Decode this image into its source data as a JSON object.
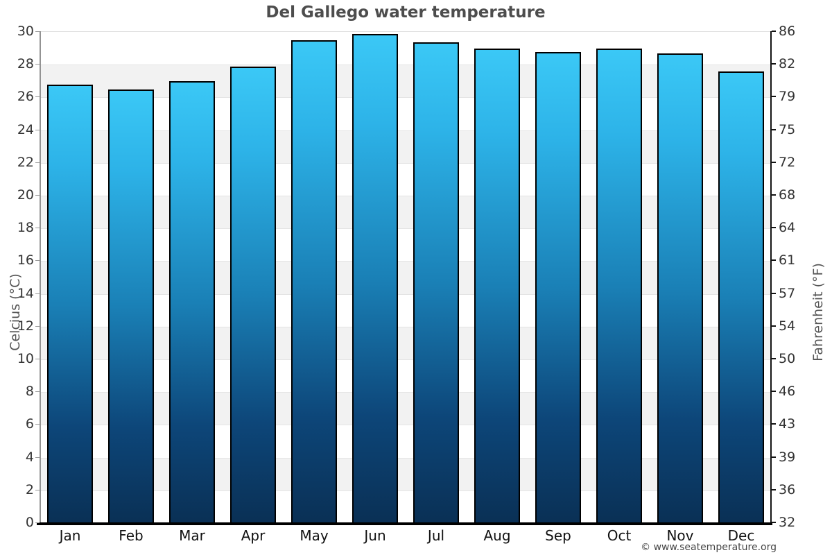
{
  "title": "Del Gallego water temperature",
  "footer": "© www.seatemperature.org",
  "chart_data": {
    "type": "bar",
    "title": "Del Gallego water temperature",
    "categories": [
      "Jan",
      "Feb",
      "Mar",
      "Apr",
      "May",
      "Jun",
      "Jul",
      "Aug",
      "Sep",
      "Oct",
      "Nov",
      "Dec"
    ],
    "values": [
      26.7,
      26.4,
      26.9,
      27.8,
      29.4,
      29.8,
      29.3,
      28.9,
      28.7,
      28.9,
      28.6,
      27.5
    ],
    "ylabel_left": "Celcius (°C)",
    "ylabel_right": "Fahrenheit (°F)",
    "ylim_left": [
      0,
      30
    ],
    "ylim_right": [
      32,
      86
    ],
    "ytick_step_celsius": 2,
    "ytick_pairs": [
      [
        30,
        86
      ],
      [
        28,
        82
      ],
      [
        26,
        79
      ],
      [
        24,
        75
      ],
      [
        22,
        72
      ],
      [
        20,
        68
      ],
      [
        18,
        64
      ],
      [
        16,
        61
      ],
      [
        14,
        57
      ],
      [
        12,
        54
      ],
      [
        10,
        50
      ],
      [
        8,
        46
      ],
      [
        6,
        43
      ],
      [
        4,
        39
      ],
      [
        2,
        36
      ],
      [
        0,
        32
      ]
    ],
    "grid": "horizontal alternating bands every 2°C",
    "legend": "none",
    "colors": {
      "bar_gradient_top": "#3bc8f6",
      "bar_gradient_mid": "#1a80b6",
      "bar_gradient_bottom": "#0a3055",
      "bar_border": "#000000",
      "band_gray": "#f2f2f2",
      "band_white": "#ffffff",
      "gridline": "#e4e4e4",
      "baseline": "#000000"
    }
  }
}
